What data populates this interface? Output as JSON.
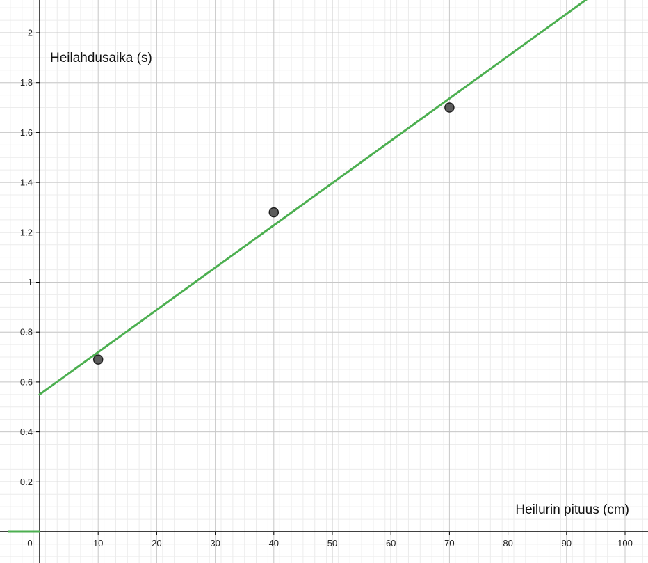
{
  "chart_data": {
    "type": "scatter",
    "title": "",
    "xlabel": "Heilurin pituus (cm)",
    "ylabel": "Heilahdusaika (s)",
    "xlim": [
      -5,
      105
    ],
    "ylim": [
      -0.08,
      2.12
    ],
    "grid": true,
    "x_ticks": [
      0,
      10,
      20,
      30,
      40,
      50,
      60,
      70,
      80,
      90,
      100
    ],
    "x_tick_labels": [
      "0",
      "10",
      "20",
      "30",
      "40",
      "50",
      "60",
      "70",
      "80",
      "90",
      "100"
    ],
    "y_ticks": [
      0.2,
      0.4,
      0.6,
      0.8,
      1,
      1.2,
      1.4,
      1.6,
      1.8,
      2
    ],
    "y_tick_labels": [
      "0.2",
      "0.4",
      "0.6",
      "0.8",
      "1",
      "1.2",
      "1.4",
      "1.6",
      "1.8",
      "2"
    ],
    "series": [
      {
        "type": "scatter",
        "x": [
          10,
          40,
          70
        ],
        "y": [
          0.69,
          1.28,
          1.7
        ]
      },
      {
        "type": "line",
        "x": [
          0,
          100
        ],
        "y": [
          0.55,
          2.245
        ]
      }
    ],
    "colors": {
      "points": "#5b5b5b",
      "line": "#4caf50",
      "grid_major": "#c8c8c8",
      "grid_minor": "#ececec",
      "axis": "#000000"
    }
  }
}
